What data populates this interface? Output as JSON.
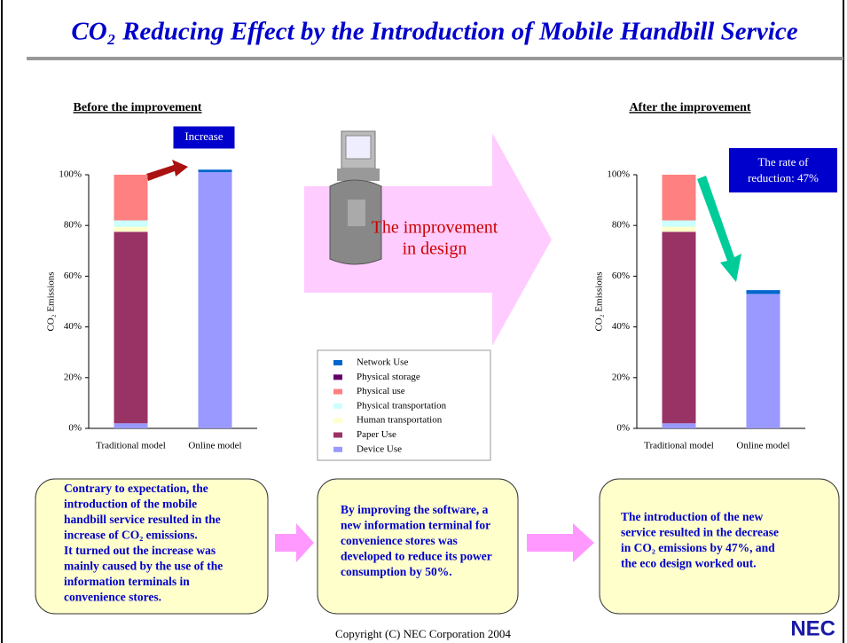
{
  "title": "CO₂ Reducing Effect by the Introduction of Mobile Handbill Service",
  "chart_data": [
    {
      "type": "bar",
      "stacked": true,
      "title": "Before the improvement",
      "y_label": "CO₂   Emissions",
      "annotation": [
        "Increase"
      ],
      "categories": [
        "Traditional model",
        "Online model"
      ],
      "ylim": [
        0,
        100
      ],
      "yticks": [
        {
          "value": 0,
          "label": "0%"
        },
        {
          "value": 20,
          "label": "20%"
        },
        {
          "value": 40,
          "label": "40%"
        },
        {
          "value": 60,
          "label": "60%"
        },
        {
          "value": 80,
          "label": "80%"
        },
        {
          "value": 100,
          "label": "100%"
        }
      ],
      "series": [
        {
          "name": "Device Use",
          "color": "#9999ff",
          "values": [
            2,
            101
          ]
        },
        {
          "name": "Paper Use",
          "color": "#993366",
          "values": [
            75.5,
            0
          ]
        },
        {
          "name": "Human transportation",
          "color": "#ffffcc",
          "values": [
            2,
            0
          ]
        },
        {
          "name": "Physical transportation",
          "color": "#ccffff",
          "values": [
            2.5,
            0
          ]
        },
        {
          "name": "Physical use",
          "color": "#ff8080",
          "values": [
            18,
            0
          ]
        },
        {
          "name": "Physical storage",
          "color": "#660066",
          "values": [
            0,
            0
          ]
        },
        {
          "name": "Network Use",
          "color": "#0066cc",
          "values": [
            0,
            1
          ]
        }
      ]
    },
    {
      "type": "bar",
      "stacked": true,
      "title": "After the improvement",
      "y_label": "CO₂   Emissions",
      "annotation": [
        "The rate of",
        "reduction: 47%"
      ],
      "categories": [
        "Traditional model",
        "Online model"
      ],
      "ylim": [
        0,
        100
      ],
      "yticks": [
        {
          "value": 0,
          "label": "0%"
        },
        {
          "value": 20,
          "label": "20%"
        },
        {
          "value": 40,
          "label": "40%"
        },
        {
          "value": 60,
          "label": "60%"
        },
        {
          "value": 80,
          "label": "80%"
        },
        {
          "value": 100,
          "label": "100%"
        }
      ],
      "series": [
        {
          "name": "Device Use",
          "color": "#9999ff",
          "values": [
            2,
            53
          ]
        },
        {
          "name": "Paper Use",
          "color": "#993366",
          "values": [
            75.5,
            0
          ]
        },
        {
          "name": "Human transportation",
          "color": "#ffffcc",
          "values": [
            2,
            0
          ]
        },
        {
          "name": "Physical transportation",
          "color": "#ccffff",
          "values": [
            2.5,
            0
          ]
        },
        {
          "name": "Physical use",
          "color": "#ff8080",
          "values": [
            18,
            0
          ]
        },
        {
          "name": "Physical storage",
          "color": "#660066",
          "values": [
            0,
            0
          ]
        },
        {
          "name": "Network Use",
          "color": "#0066cc",
          "values": [
            0,
            1.5
          ]
        }
      ]
    }
  ],
  "arrow_label": [
    "The improvement",
    "in design"
  ],
  "boxes": [
    [
      "Contrary to expectation, the",
      "introduction of the mobile",
      "handbill service resulted in the",
      "increase of CO₂ emissions.",
      "It turned out the increase was",
      "mainly caused by the use of the",
      "information terminals in",
      "convenience stores."
    ],
    [
      "By improving the software, a",
      "new information terminal for",
      "convenience stores was",
      "developed to reduce its power",
      "consumption by 50%."
    ],
    [
      "The introduction of the new",
      "service resulted in the decrease",
      "in CO₂ emissions by 47%, and",
      "the eco design worked out."
    ]
  ],
  "copyright": "Copyright (C) NEC Corporation 2004",
  "logo": "NEC"
}
